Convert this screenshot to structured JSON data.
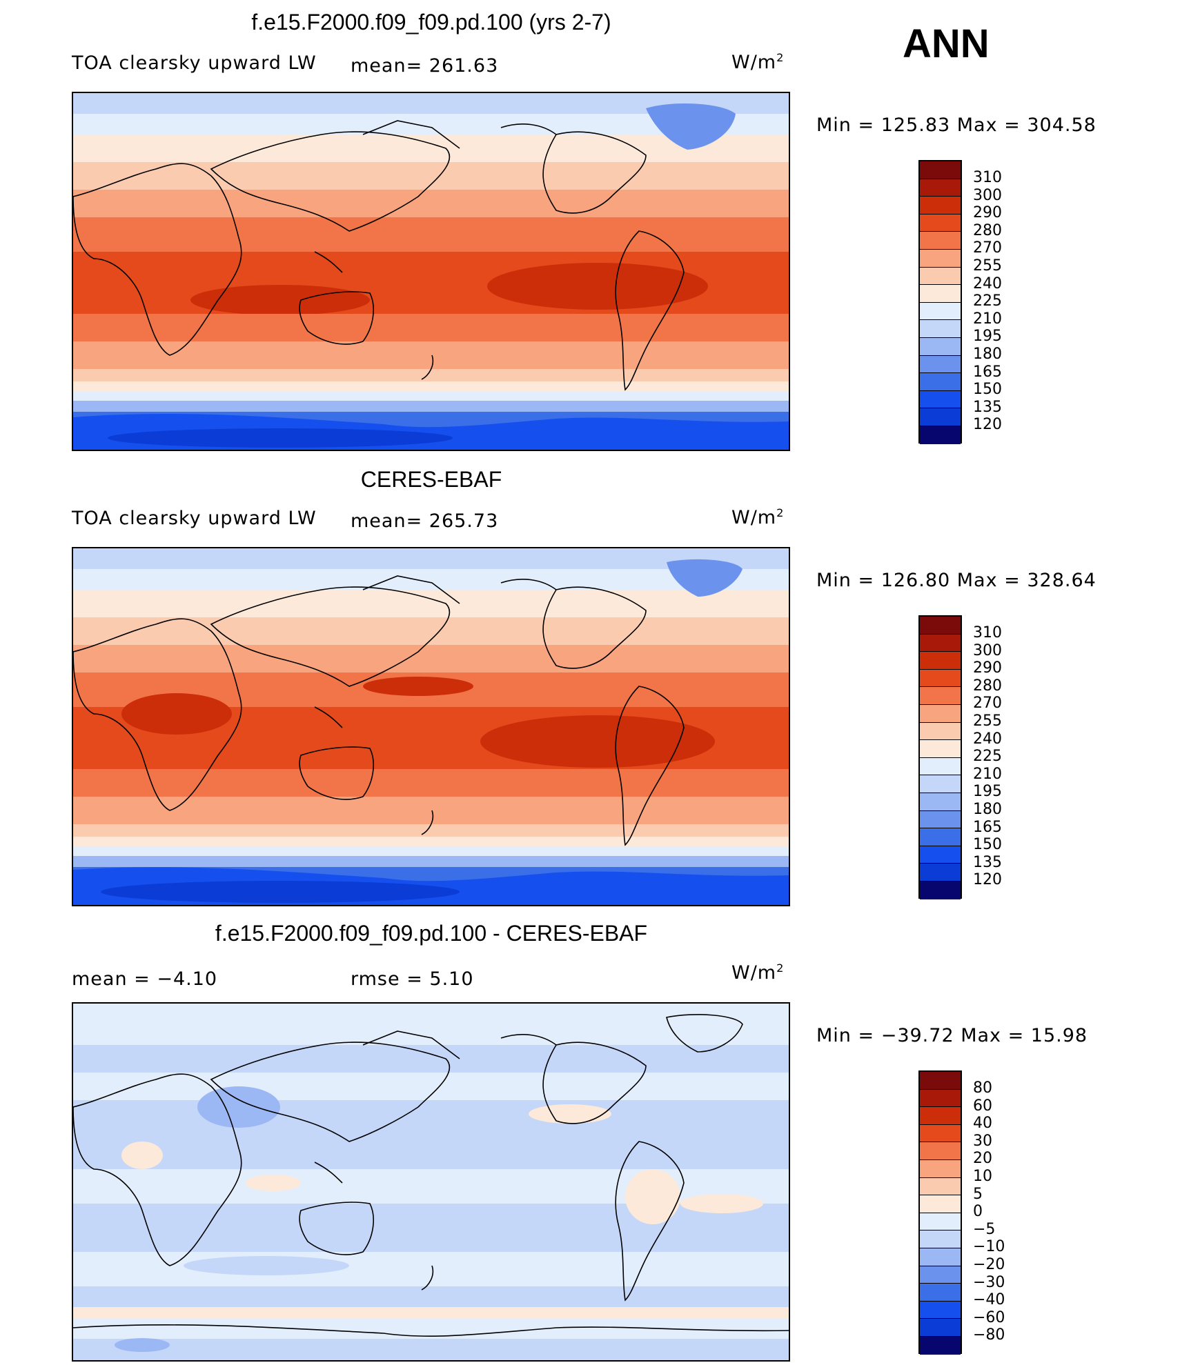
{
  "season": "ANN",
  "colors": {
    "abs_palette": [
      "#07056e",
      "#0a2aa4",
      "#0b3cd5",
      "#1550ef",
      "#3a6fe8",
      "#6b93ee",
      "#9cb8f4",
      "#c4d7f9",
      "#e3eefc",
      "#fde9da",
      "#fbcbb0",
      "#f8a47e",
      "#f17548",
      "#e54a1c",
      "#cc2e09",
      "#7b0b0b"
    ],
    "diff_palette": [
      "#07056e",
      "#0a2aa4",
      "#0b3cd5",
      "#1550ef",
      "#3a6fe8",
      "#6b93ee",
      "#9cb8f4",
      "#c4d7f9",
      "#e3eefc",
      "#fde9da",
      "#fbcbb0",
      "#f8a47e",
      "#f17548",
      "#e54a1c",
      "#cc2e09",
      "#7b0b0b"
    ]
  },
  "panels": [
    {
      "title": "f.e15.F2000.f09_f09.pd.100 (yrs 2-7)",
      "variable": "TOA clearsky upward LW",
      "stat1": "mean=  261.63",
      "stat2": "",
      "units_base": "W/m",
      "units_exp": "2",
      "minmax": "Min  =  125.83  Max  =  304.58",
      "colorbar_labels": [
        "310",
        "300",
        "290",
        "280",
        "270",
        "255",
        "240",
        "225",
        "210",
        "195",
        "180",
        "165",
        "150",
        "135",
        "120"
      ]
    },
    {
      "title": "CERES-EBAF",
      "variable": "TOA clearsky upward LW",
      "stat1": "mean=  265.73",
      "stat2": "",
      "units_base": "W/m",
      "units_exp": "2",
      "minmax": "Min  =  126.80  Max  =  328.64",
      "colorbar_labels": [
        "310",
        "300",
        "290",
        "280",
        "270",
        "255",
        "240",
        "225",
        "210",
        "195",
        "180",
        "165",
        "150",
        "135",
        "120"
      ]
    },
    {
      "title": "f.e15.F2000.f09_f09.pd.100 - CERES-EBAF",
      "variable": "",
      "stat1": "mean  =    −4.10",
      "stat2": "rmse  =     5.10",
      "units_base": "W/m",
      "units_exp": "2",
      "minmax": "Min  =  −39.72  Max  =    15.98",
      "colorbar_labels": [
        "80",
        "60",
        "40",
        "30",
        "20",
        "10",
        "5",
        "0",
        "−5",
        "−10",
        "−20",
        "−30",
        "−40",
        "−60",
        "−80"
      ]
    }
  ]
}
